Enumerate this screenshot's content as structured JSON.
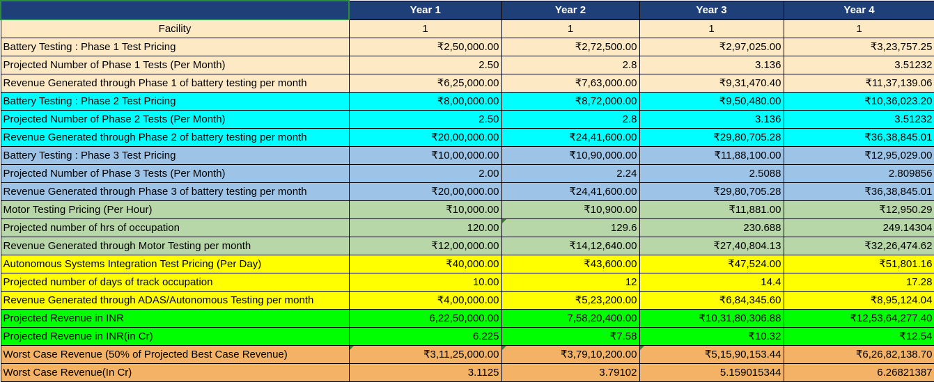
{
  "header": {
    "corner": "",
    "years": [
      "Year 1",
      "Year 2",
      "Year 3",
      "Year 4"
    ]
  },
  "colors": {
    "cream": "#fde9c4",
    "cyan": "#00ffff",
    "steel": "#9dc3e6",
    "sage": "#b8d7a8",
    "yellow": "#ffff00",
    "green": "#00ff00",
    "orange": "#f4b266",
    "header": "#1f3f78"
  },
  "rows": [
    {
      "label": "Facility",
      "values": [
        "1",
        "1",
        "1",
        "1"
      ],
      "color": "#fde9c4"
    },
    {
      "label": "Battery Testing : Phase 1 Test Pricing",
      "values": [
        "₹2,50,000.00",
        "₹2,72,500.00",
        "₹2,97,025.00",
        "₹3,23,757.25"
      ],
      "color": "#fde9c4"
    },
    {
      "label": "Projected Number of Phase 1 Tests (Per Month)",
      "values": [
        "2.50",
        "2.8",
        "3.136",
        "3.51232"
      ],
      "color": "#fde9c4"
    },
    {
      "label": "Revenue Generated through Phase 1 of battery testing per month",
      "values": [
        "₹6,25,000.00",
        "₹7,63,000.00",
        "₹9,31,470.40",
        "₹11,37,139.06"
      ],
      "color": "#fde9c4"
    },
    {
      "label": "Battery Testing : Phase 2 Test Pricing",
      "values": [
        "₹8,00,000.00",
        "₹8,72,000.00",
        "₹9,50,480.00",
        "₹10,36,023.20"
      ],
      "color": "#00ffff"
    },
    {
      "label": "Projected Number of Phase 2 Tests (Per Month)",
      "values": [
        "2.50",
        "2.8",
        "3.136",
        "3.51232"
      ],
      "color": "#00ffff"
    },
    {
      "label": "Revenue Generated through Phase 2 of battery testing per month",
      "values": [
        "₹20,00,000.00",
        "₹24,41,600.00",
        "₹29,80,705.28",
        "₹36,38,845.01"
      ],
      "color": "#00ffff"
    },
    {
      "label": "Battery Testing : Phase 3 Test Pricing",
      "values": [
        "₹10,00,000.00",
        "₹10,90,000.00",
        "₹11,88,100.00",
        "₹12,95,029.00"
      ],
      "color": "#9dc3e6"
    },
    {
      "label": "Projected Number of Phase 3 Tests (Per Month)",
      "values": [
        "2.00",
        "2.24",
        "2.5088",
        "2.809856"
      ],
      "color": "#9dc3e6"
    },
    {
      "label": "Revenue Generated through Phase 3 of battery testing per month",
      "values": [
        "₹20,00,000.00",
        "₹24,41,600.00",
        "₹29,80,705.28",
        "₹36,38,845.01"
      ],
      "color": "#9dc3e6"
    },
    {
      "label": "Motor Testing Pricing (Per Hour)",
      "values": [
        "₹10,000.00",
        "₹10,900.00",
        "₹11,881.00",
        "₹12,950.29"
      ],
      "color": "#b8d7a8"
    },
    {
      "label": "Projected number of hrs of occupation",
      "values": [
        "120.00",
        "129.6",
        "230.688",
        "249.14304"
      ],
      "color": "#b8d7a8"
    },
    {
      "label": "Revenue Generated through Motor Testing per month",
      "values": [
        "₹12,00,000.00",
        "₹14,12,640.00",
        "₹27,40,804.13",
        "₹32,26,474.62"
      ],
      "color": "#b8d7a8"
    },
    {
      "label": "Autonomous Systems Integration Test Pricing (Per Day)",
      "values": [
        "₹40,000.00",
        "₹43,600.00",
        "₹47,524.00",
        "₹51,801.16"
      ],
      "color": "#ffff00"
    },
    {
      "label": "Projected number of days of track occupation",
      "values": [
        "10.00",
        "12",
        "14.4",
        "17.28"
      ],
      "color": "#ffff00"
    },
    {
      "label": "Revenue Generated through ADAS/Autonomous Testing per month",
      "values": [
        "₹4,00,000.00",
        "₹5,23,200.00",
        "₹6,84,345.60",
        "₹8,95,124.04"
      ],
      "color": "#ffff00"
    },
    {
      "label": "Projected Revenue in INR",
      "values": [
        "6,22,50,000.00",
        "7,58,20,400.00",
        "₹10,31,80,306.88",
        "₹12,53,64,277.40"
      ],
      "color": "#00ff00"
    },
    {
      "label": "Projected Revenue in INR(in Cr)",
      "values": [
        "6.225",
        "₹7.58",
        "₹10.32",
        "₹12.54"
      ],
      "color": "#00ff00"
    },
    {
      "label": "Worst Case Revenue (50% of Projected Best Case Revenue)",
      "values": [
        "₹3,11,25,000.00",
        "₹3,79,10,200.00",
        "₹5,15,90,153.44",
        "₹6,26,82,138.70"
      ],
      "color": "#f4b266"
    },
    {
      "label": "Worst Case Revenue(In Cr)",
      "values": [
        "3.1125",
        "3.79102",
        "5.159015344",
        "6.26821387"
      ],
      "color": "#f4b266"
    }
  ]
}
